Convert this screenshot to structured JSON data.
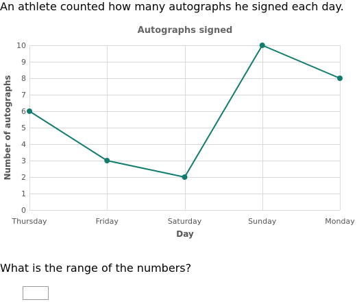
{
  "prompt_text": "An athlete counted how many autographs he signed each day.",
  "question_text": "What is the range of the numbers?",
  "answer": {
    "value": ""
  },
  "colors": {
    "line": "#0f7c6e",
    "grid": "#d9d9d9",
    "axis_text": "#555555",
    "title_text": "#666666"
  },
  "chart_data": {
    "type": "line",
    "title": "Autographs signed",
    "xlabel": "Day",
    "ylabel": "Number of autographs",
    "categories": [
      "Thursday",
      "Friday",
      "Saturday",
      "Sunday",
      "Monday"
    ],
    "values": [
      6,
      3,
      2,
      10,
      8
    ],
    "ylim": [
      0,
      10
    ],
    "yticks": [
      0,
      1,
      2,
      3,
      4,
      5,
      6,
      7,
      8,
      9,
      10
    ],
    "grid": true,
    "legend": "none"
  }
}
